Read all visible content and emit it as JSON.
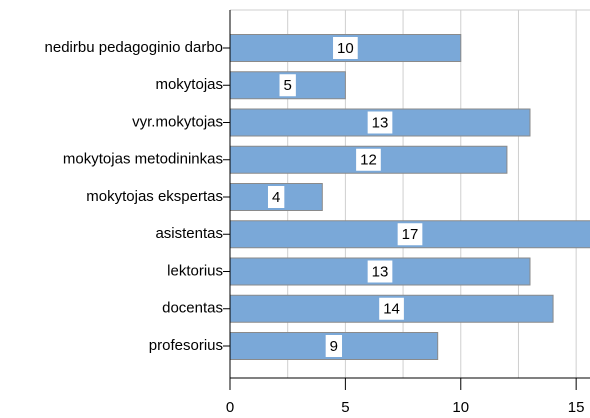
{
  "chart_data": {
    "type": "barh",
    "categories": [
      "nedirbu pedagoginio darbo",
      "mokytojas",
      "vyr.mokytojas",
      "mokytojas metodininkas",
      "mokytojas ekspertas",
      "asistentas",
      "lektorius",
      "docentas",
      "profesorius"
    ],
    "values": [
      10,
      5,
      13,
      12,
      4,
      17,
      13,
      14,
      9
    ],
    "color": "#7aa8d8",
    "xlim": [
      0,
      15.6
    ],
    "xticks": [
      0,
      5,
      10,
      15
    ],
    "minor_xticks": [
      2.5,
      7.5,
      12.5
    ],
    "grid": true
  }
}
